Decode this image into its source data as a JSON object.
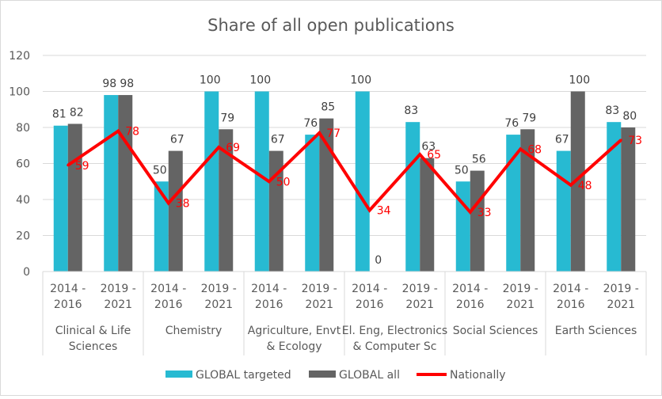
{
  "chart_data": {
    "type": "bar",
    "title": "Share of all open publications",
    "xlabel": "",
    "ylabel": "",
    "ylim": [
      0,
      120
    ],
    "yticks": [
      0,
      20,
      40,
      60,
      80,
      100,
      120
    ],
    "grid": true,
    "legend_position": "bottom",
    "groups": [
      {
        "label_lines": [
          "Clinical & Life",
          "Sciences"
        ]
      },
      {
        "label_lines": [
          "Chemistry"
        ]
      },
      {
        "label_lines": [
          "Agriculture, Envt",
          "& Ecology"
        ]
      },
      {
        "label_lines": [
          "El. Eng, Electronics",
          "& Computer Sc"
        ]
      },
      {
        "label_lines": [
          "Social Sciences"
        ]
      },
      {
        "label_lines": [
          "Earth Sciences"
        ]
      }
    ],
    "periods": [
      [
        "2014 -",
        "2016"
      ],
      [
        "2019 -",
        "2021"
      ]
    ],
    "categories": [
      "Clinical & Life Sciences 2014 - 2016",
      "Clinical & Life Sciences 2019 - 2021",
      "Chemistry 2014 - 2016",
      "Chemistry 2019 - 2021",
      "Agriculture, Envt & Ecology 2014 - 2016",
      "Agriculture, Envt & Ecology 2019 - 2021",
      "El. Eng, Electronics & Computer Sc 2014 - 2016",
      "El. Eng, Electronics & Computer Sc 2019 - 2021",
      "Social Sciences 2014 - 2016",
      "Social Sciences 2019 - 2021",
      "Earth Sciences 2014 - 2016",
      "Earth Sciences 2019 - 2021"
    ],
    "series": [
      {
        "name": "GLOBAL targeted",
        "type": "bar",
        "color": "#27BAD2",
        "values": [
          81,
          98,
          50,
          100,
          100,
          76,
          100,
          83,
          50,
          76,
          67,
          83
        ]
      },
      {
        "name": "GLOBAL all",
        "type": "bar",
        "color": "#646464",
        "values": [
          82,
          98,
          67,
          79,
          67,
          85,
          0,
          63,
          56,
          79,
          100,
          80
        ]
      },
      {
        "name": "Nationally",
        "type": "line",
        "color": "#FF0000",
        "values": [
          59,
          78,
          38,
          69,
          50,
          77,
          34,
          65,
          33,
          68,
          48,
          73
        ]
      }
    ]
  }
}
